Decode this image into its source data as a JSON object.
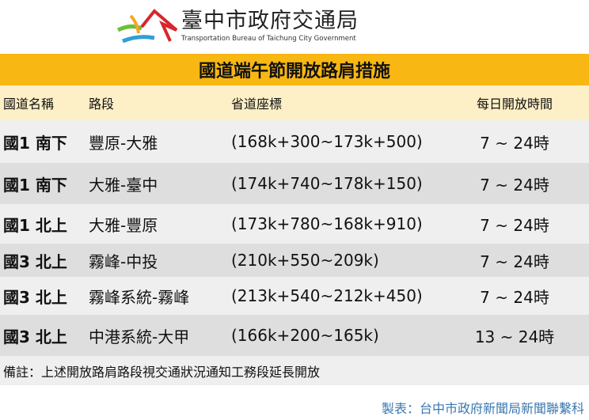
{
  "logo": {
    "name_cn": "臺中市政府交通局",
    "name_en": "Transportation Bureau of Taichung City Government"
  },
  "title": "國道端午節開放路肩措施",
  "table": {
    "headers": [
      "國道名稱",
      "路段",
      "省道座標",
      "每日開放時間"
    ],
    "rows": [
      {
        "road": "國1 南下",
        "section": "豐原-大雅",
        "coords": "(168k+300~173k+500)",
        "hours": "7 ~ 24時"
      },
      {
        "road": "國1 南下",
        "section": "大雅-臺中",
        "coords": "(174k+740~178k+150)",
        "hours": "7 ~ 24時"
      },
      {
        "road": "國1 北上",
        "section": "大雅-豐原",
        "coords": "(173k+780~168k+910)",
        "hours": "7 ~ 24時"
      },
      {
        "road": "國3 北上",
        "section": "霧峰-中投",
        "coords": "(210k+550~209k)",
        "hours": "7 ~ 24時"
      },
      {
        "road": "國3 北上",
        "section": "霧峰系統-霧峰",
        "coords": "(213k+540~212k+450)",
        "hours": "7 ~ 24時"
      },
      {
        "road": "國3 北上",
        "section": "中港系統-大甲",
        "coords": "(166k+200~165k)",
        "hours": "13 ~ 24時"
      }
    ]
  },
  "note": "備註：上述開放路肩路段視交通狀況通知工務段延長開放",
  "credit": "製表：台中市政府新聞局新聞聯繫科",
  "colors": {
    "banner": "#f8b712",
    "header": "#fdefc6",
    "row_light": "#efefef",
    "row_dark": "#dedede",
    "credit": "#3a78b0"
  }
}
